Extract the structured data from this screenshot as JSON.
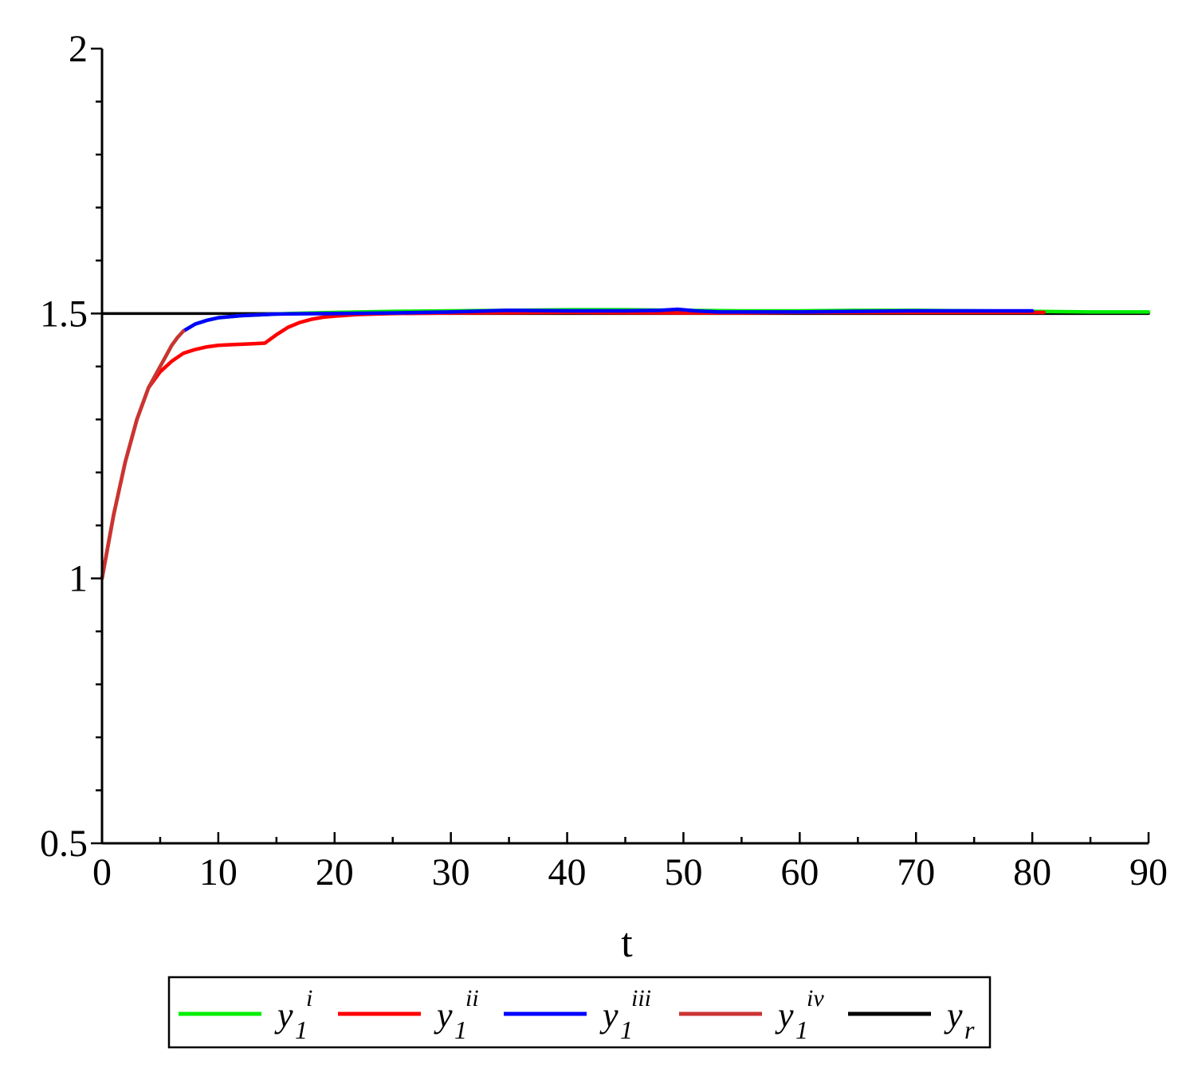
{
  "chart_data": {
    "type": "line",
    "xlabel": "t",
    "ylabel": "",
    "xlim": [
      0,
      90
    ],
    "ylim": [
      0.5,
      2
    ],
    "xticks": [
      0,
      10,
      20,
      30,
      40,
      50,
      60,
      70,
      80,
      90
    ],
    "yticks": [
      0.5,
      1,
      1.5,
      2
    ],
    "xtick_labels": [
      "0",
      "10",
      "20",
      "30",
      "40",
      "50",
      "60",
      "70",
      "80",
      "90"
    ],
    "ytick_labels": [
      "0.5",
      "1",
      "1.5",
      "2"
    ],
    "legend_position": "bottom",
    "series": [
      {
        "base": "y",
        "sub": "1",
        "sup": "i",
        "color": "#00ee00",
        "points": [
          [
            0,
            1.0
          ],
          [
            0.5,
            1.06
          ],
          [
            1,
            1.12
          ],
          [
            1.5,
            1.17
          ],
          [
            2,
            1.22
          ],
          [
            2.5,
            1.26
          ],
          [
            3,
            1.3
          ],
          [
            3.5,
            1.33
          ],
          [
            4,
            1.36
          ],
          [
            4.5,
            1.38
          ],
          [
            5,
            1.4
          ],
          [
            5.5,
            1.42
          ],
          [
            6,
            1.44
          ],
          [
            6.5,
            1.455
          ],
          [
            7,
            1.467
          ],
          [
            8,
            1.48
          ],
          [
            9,
            1.487
          ],
          [
            10,
            1.492
          ],
          [
            12,
            1.496
          ],
          [
            14,
            1.498
          ],
          [
            16,
            1.5
          ],
          [
            20,
            1.502
          ],
          [
            25,
            1.504
          ],
          [
            30,
            1.505
          ],
          [
            35,
            1.506
          ],
          [
            40,
            1.507
          ],
          [
            45,
            1.507
          ],
          [
            50,
            1.506
          ],
          [
            55,
            1.505
          ],
          [
            60,
            1.505
          ],
          [
            65,
            1.506
          ],
          [
            70,
            1.506
          ],
          [
            75,
            1.505
          ],
          [
            80,
            1.504
          ],
          [
            85,
            1.503
          ],
          [
            90,
            1.503
          ]
        ]
      },
      {
        "base": "y",
        "sub": "1",
        "sup": "ii",
        "color": "#ff0000",
        "points": [
          [
            0,
            1.0
          ],
          [
            0.5,
            1.06
          ],
          [
            1,
            1.12
          ],
          [
            1.5,
            1.17
          ],
          [
            2,
            1.22
          ],
          [
            2.5,
            1.26
          ],
          [
            3,
            1.3
          ],
          [
            3.5,
            1.33
          ],
          [
            4,
            1.36
          ],
          [
            4.5,
            1.375
          ],
          [
            5,
            1.39
          ],
          [
            6,
            1.41
          ],
          [
            7,
            1.425
          ],
          [
            8,
            1.432
          ],
          [
            9,
            1.437
          ],
          [
            10,
            1.44
          ],
          [
            11,
            1.441
          ],
          [
            12,
            1.442
          ],
          [
            13,
            1.443
          ],
          [
            14,
            1.444
          ],
          [
            15,
            1.46
          ],
          [
            16,
            1.474
          ],
          [
            17,
            1.483
          ],
          [
            18,
            1.489
          ],
          [
            19,
            1.493
          ],
          [
            20,
            1.495
          ],
          [
            22,
            1.498
          ],
          [
            25,
            1.5
          ],
          [
            30,
            1.501
          ],
          [
            40,
            1.502
          ],
          [
            50,
            1.501
          ],
          [
            55,
            1.501
          ],
          [
            60,
            1.502
          ],
          [
            70,
            1.502
          ],
          [
            80,
            1.502
          ],
          [
            81,
            1.502
          ]
        ]
      },
      {
        "base": "y",
        "sub": "1",
        "sup": "iii",
        "color": "#0000ff",
        "points": [
          [
            7,
            1.467
          ],
          [
            8,
            1.48
          ],
          [
            9,
            1.487
          ],
          [
            10,
            1.492
          ],
          [
            12,
            1.496
          ],
          [
            15,
            1.499
          ],
          [
            20,
            1.5
          ],
          [
            25,
            1.501
          ],
          [
            30,
            1.503
          ],
          [
            35,
            1.506
          ],
          [
            40,
            1.505
          ],
          [
            45,
            1.505
          ],
          [
            48,
            1.506
          ],
          [
            49.5,
            1.508
          ],
          [
            51,
            1.505
          ],
          [
            53,
            1.503
          ],
          [
            55,
            1.503
          ],
          [
            60,
            1.503
          ],
          [
            65,
            1.504
          ],
          [
            70,
            1.505
          ],
          [
            75,
            1.505
          ],
          [
            80,
            1.505
          ]
        ]
      },
      {
        "base": "y",
        "sub": "1",
        "sup": "iv",
        "color": "#cc3333",
        "points": [
          [
            0,
            1.0
          ],
          [
            0.5,
            1.06
          ],
          [
            1,
            1.12
          ],
          [
            1.5,
            1.17
          ],
          [
            2,
            1.22
          ],
          [
            2.5,
            1.26
          ],
          [
            3,
            1.3
          ],
          [
            3.5,
            1.33
          ],
          [
            4,
            1.36
          ],
          [
            4.5,
            1.38
          ],
          [
            5,
            1.4
          ],
          [
            5.5,
            1.42
          ],
          [
            6,
            1.44
          ],
          [
            6.5,
            1.455
          ],
          [
            7,
            1.467
          ]
        ]
      },
      {
        "base": "y",
        "sub": "r",
        "sup": "",
        "color": "#000000",
        "points": [
          [
            0,
            1.5
          ],
          [
            90,
            1.5
          ]
        ]
      }
    ]
  }
}
